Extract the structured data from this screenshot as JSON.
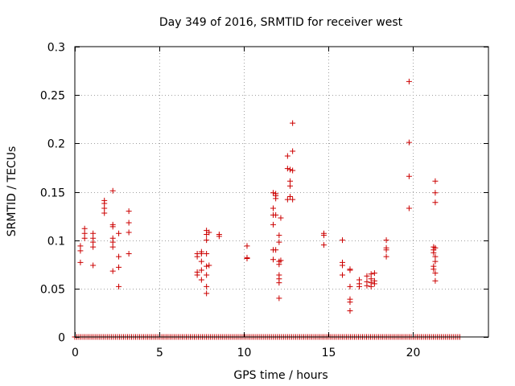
{
  "chart_data": {
    "type": "scatter",
    "title": "Day 349 of 2016, SRMTID for receiver west",
    "xlabel": "GPS time / hours",
    "ylabel": "SRMTID / TECUs",
    "xlim": [
      0,
      24.5
    ],
    "ylim": [
      0,
      0.3
    ],
    "grid": true,
    "marker": "+",
    "color": "#cc0000",
    "xticks": [
      0,
      5,
      10,
      15,
      20
    ],
    "xtick_labels": [
      "0",
      "5",
      "10",
      "15",
      "20"
    ],
    "yticks": [
      0,
      0.05,
      0.1,
      0.15,
      0.2,
      0.25,
      0.3
    ],
    "ytick_labels": [
      "0",
      "0.05",
      "0.1",
      "0.15",
      "0.2",
      "0.25",
      "0.3"
    ],
    "baseline": {
      "y": 0,
      "x_start": 0,
      "x_end": 22.8,
      "step": 0.12
    },
    "points": [
      [
        0.33,
        0.094
      ],
      [
        0.33,
        0.089
      ],
      [
        0.33,
        0.077
      ],
      [
        0.58,
        0.112
      ],
      [
        0.58,
        0.107
      ],
      [
        0.58,
        0.102
      ],
      [
        1.08,
        0.107
      ],
      [
        1.08,
        0.102
      ],
      [
        1.08,
        0.098
      ],
      [
        1.08,
        0.093
      ],
      [
        1.08,
        0.074
      ],
      [
        1.75,
        0.141
      ],
      [
        1.75,
        0.138
      ],
      [
        1.75,
        0.133
      ],
      [
        1.75,
        0.128
      ],
      [
        2.25,
        0.151
      ],
      [
        2.25,
        0.116
      ],
      [
        2.25,
        0.114
      ],
      [
        2.25,
        0.102
      ],
      [
        2.25,
        0.098
      ],
      [
        2.25,
        0.093
      ],
      [
        2.25,
        0.068
      ],
      [
        2.6,
        0.107
      ],
      [
        2.6,
        0.083
      ],
      [
        2.6,
        0.072
      ],
      [
        2.6,
        0.052
      ],
      [
        3.2,
        0.13
      ],
      [
        3.2,
        0.118
      ],
      [
        3.2,
        0.108
      ],
      [
        3.2,
        0.086
      ],
      [
        7.25,
        0.086
      ],
      [
        7.25,
        0.083
      ],
      [
        7.25,
        0.067
      ],
      [
        7.25,
        0.064
      ],
      [
        7.5,
        0.088
      ],
      [
        7.5,
        0.086
      ],
      [
        7.5,
        0.078
      ],
      [
        7.5,
        0.069
      ],
      [
        7.5,
        0.059
      ],
      [
        7.8,
        0.11
      ],
      [
        7.8,
        0.106
      ],
      [
        7.8,
        0.1
      ],
      [
        7.8,
        0.086
      ],
      [
        7.8,
        0.073
      ],
      [
        7.8,
        0.064
      ],
      [
        7.8,
        0.052
      ],
      [
        7.8,
        0.045
      ],
      [
        7.95,
        0.108
      ],
      [
        7.95,
        0.074
      ],
      [
        8.55,
        0.106
      ],
      [
        8.55,
        0.104
      ],
      [
        10.2,
        0.094
      ],
      [
        10.2,
        0.082
      ],
      [
        10.2,
        0.081
      ],
      [
        11.75,
        0.149
      ],
      [
        11.75,
        0.133
      ],
      [
        11.75,
        0.126
      ],
      [
        11.75,
        0.116
      ],
      [
        11.75,
        0.09
      ],
      [
        11.75,
        0.08
      ],
      [
        11.9,
        0.148
      ],
      [
        11.9,
        0.146
      ],
      [
        11.9,
        0.143
      ],
      [
        11.9,
        0.126
      ],
      [
        11.9,
        0.09
      ],
      [
        12.1,
        0.105
      ],
      [
        12.1,
        0.098
      ],
      [
        12.1,
        0.078
      ],
      [
        12.1,
        0.075
      ],
      [
        12.1,
        0.064
      ],
      [
        12.1,
        0.06
      ],
      [
        12.1,
        0.056
      ],
      [
        12.1,
        0.04
      ],
      [
        12.2,
        0.123
      ],
      [
        12.2,
        0.079
      ],
      [
        12.6,
        0.187
      ],
      [
        12.6,
        0.174
      ],
      [
        12.6,
        0.142
      ],
      [
        12.75,
        0.173
      ],
      [
        12.75,
        0.161
      ],
      [
        12.75,
        0.156
      ],
      [
        12.75,
        0.145
      ],
      [
        12.9,
        0.221
      ],
      [
        12.9,
        0.192
      ],
      [
        12.9,
        0.172
      ],
      [
        12.9,
        0.142
      ],
      [
        14.75,
        0.107
      ],
      [
        14.75,
        0.105
      ],
      [
        14.75,
        0.095
      ],
      [
        15.85,
        0.1
      ],
      [
        15.85,
        0.077
      ],
      [
        15.85,
        0.074
      ],
      [
        15.85,
        0.064
      ],
      [
        16.3,
        0.07
      ],
      [
        16.3,
        0.069
      ],
      [
        16.3,
        0.052
      ],
      [
        16.3,
        0.039
      ],
      [
        16.3,
        0.036
      ],
      [
        16.3,
        0.027
      ],
      [
        16.85,
        0.059
      ],
      [
        16.85,
        0.055
      ],
      [
        16.85,
        0.052
      ],
      [
        17.3,
        0.063
      ],
      [
        17.3,
        0.057
      ],
      [
        17.3,
        0.053
      ],
      [
        17.55,
        0.065
      ],
      [
        17.55,
        0.06
      ],
      [
        17.55,
        0.056
      ],
      [
        17.55,
        0.052
      ],
      [
        17.75,
        0.066
      ],
      [
        17.75,
        0.058
      ],
      [
        17.75,
        0.055
      ],
      [
        18.45,
        0.1
      ],
      [
        18.45,
        0.092
      ],
      [
        18.45,
        0.09
      ],
      [
        18.45,
        0.083
      ],
      [
        19.8,
        0.264
      ],
      [
        19.8,
        0.201
      ],
      [
        19.8,
        0.166
      ],
      [
        19.8,
        0.133
      ],
      [
        21.25,
        0.093
      ],
      [
        21.25,
        0.09
      ],
      [
        21.25,
        0.087
      ],
      [
        21.25,
        0.073
      ],
      [
        21.25,
        0.07
      ],
      [
        21.35,
        0.161
      ],
      [
        21.35,
        0.149
      ],
      [
        21.35,
        0.139
      ],
      [
        21.35,
        0.092
      ],
      [
        21.35,
        0.083
      ],
      [
        21.35,
        0.078
      ],
      [
        21.35,
        0.066
      ],
      [
        21.35,
        0.058
      ]
    ]
  }
}
